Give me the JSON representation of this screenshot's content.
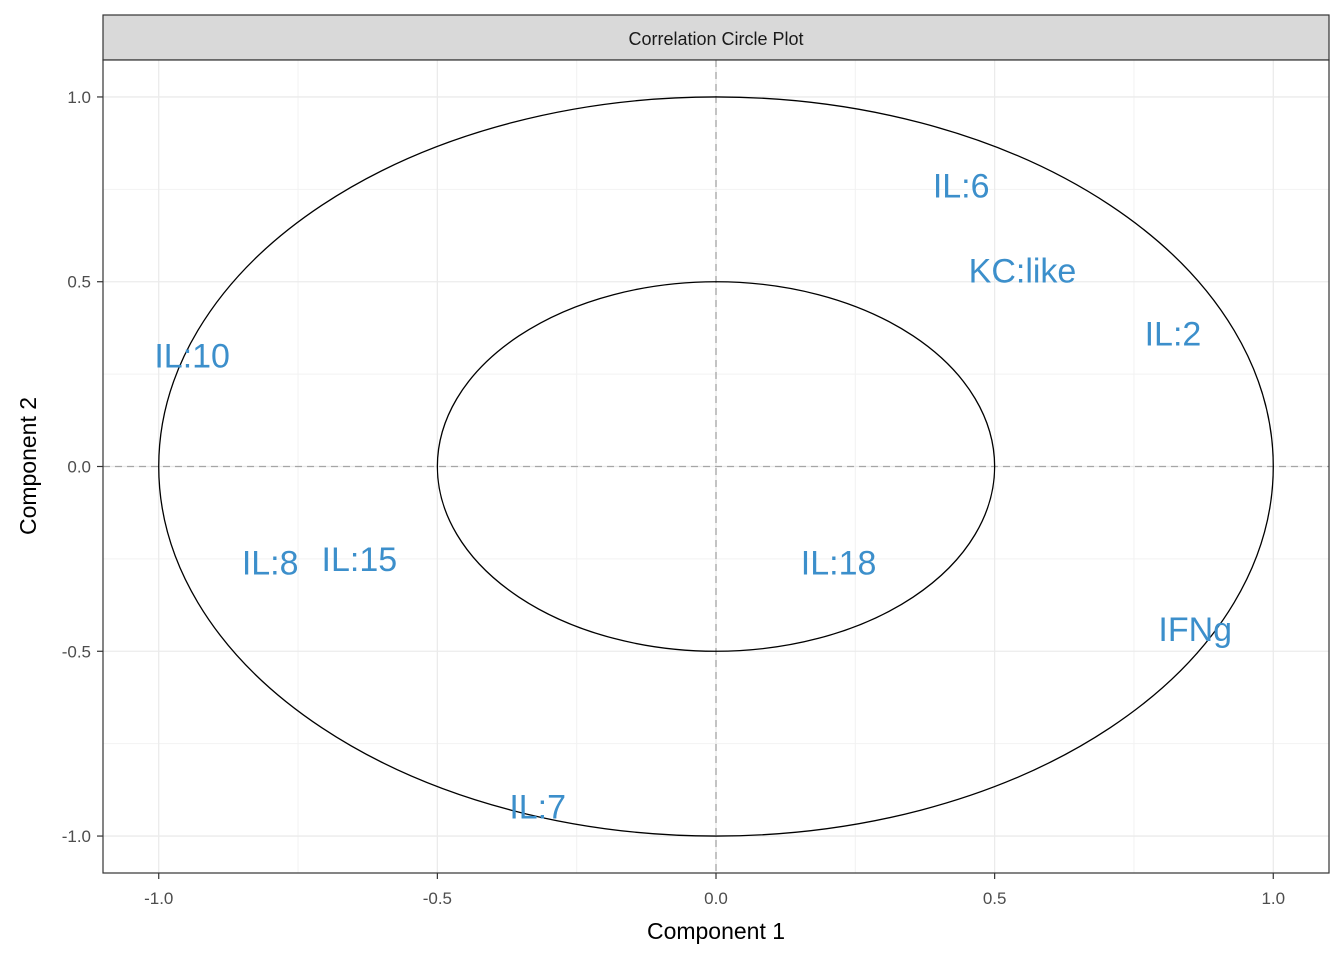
{
  "chart_data": {
    "type": "scatter",
    "title": "Correlation Circle Plot",
    "xlabel": "Component  1",
    "ylabel": "Component  2",
    "xlim": [
      -1.1,
      1.1
    ],
    "ylim": [
      -1.1,
      1.1
    ],
    "x_ticks": [
      -1.0,
      -0.5,
      0.0,
      0.5,
      1.0
    ],
    "y_ticks": [
      -1.0,
      -0.5,
      0.0,
      0.5,
      1.0
    ],
    "x_tick_labels": [
      "-1.0",
      "-0.5",
      "0.0",
      "0.5",
      "1.0"
    ],
    "y_tick_labels": [
      "-1.0",
      "-0.5",
      "0.0",
      "0.5",
      "1.0"
    ],
    "circles": [
      1.0,
      0.5
    ],
    "reference_lines": [
      0,
      0
    ],
    "grid": true,
    "label_color": "#3C8FCB",
    "points": [
      {
        "label": "IL:6",
        "x": 0.44,
        "y": 0.76
      },
      {
        "label": "KC:like",
        "x": 0.55,
        "y": 0.53
      },
      {
        "label": "IL:2",
        "x": 0.82,
        "y": 0.36
      },
      {
        "label": "IL:10",
        "x": -0.94,
        "y": 0.3
      },
      {
        "label": "IL:8",
        "x": -0.8,
        "y": -0.26
      },
      {
        "label": "IL:15",
        "x": -0.64,
        "y": -0.25
      },
      {
        "label": "IL:18",
        "x": 0.22,
        "y": -0.26
      },
      {
        "label": "IFNg",
        "x": 0.86,
        "y": -0.44
      },
      {
        "label": "IL:7",
        "x": -0.32,
        "y": -0.92
      }
    ]
  }
}
